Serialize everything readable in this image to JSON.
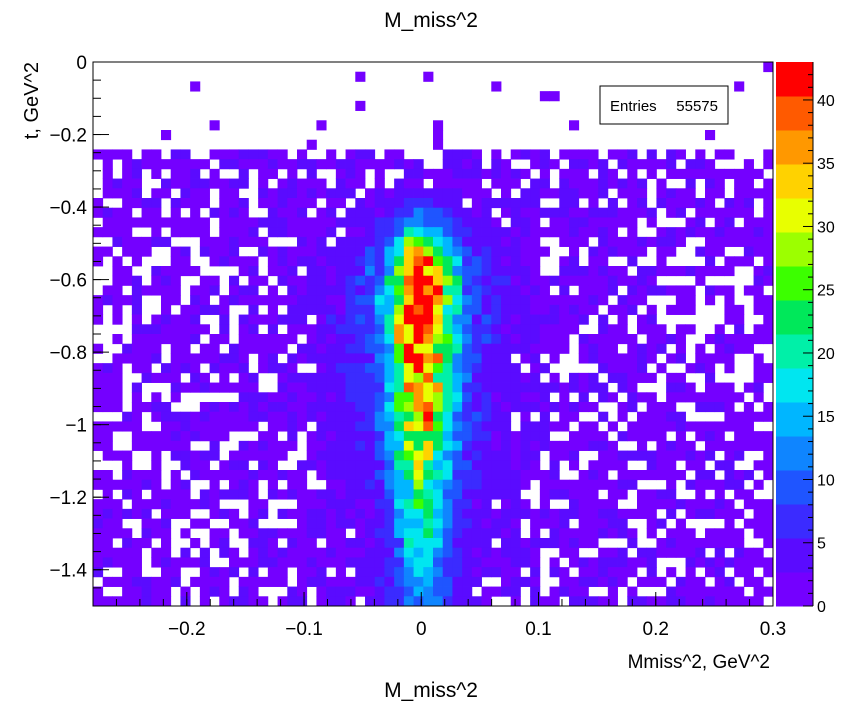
{
  "chart_data": {
    "type": "heatmap",
    "title": "M_miss^2",
    "footer_label": "M_miss^2",
    "xlabel": "Mmiss^2, GeV^2",
    "ylabel": "t, GeV^2",
    "xlim": [
      -0.28,
      0.3
    ],
    "ylim": [
      -1.5,
      0
    ],
    "x_ticks": [
      -0.2,
      -0.1,
      0,
      0.1,
      0.2,
      0.3
    ],
    "x_tick_labels": [
      "−0.2",
      "−0.1",
      "0",
      "0.1",
      "0.2",
      "0.3"
    ],
    "y_ticks": [
      0,
      -0.2,
      -0.4,
      -0.6,
      -0.8,
      -1,
      -1.2,
      -1.4
    ],
    "y_tick_labels": [
      "0",
      "−0.2",
      "−0.4",
      "−0.6",
      "−0.8",
      "−1",
      "−1.2",
      "−1.4"
    ],
    "bins_x": 70,
    "bins_y": 56,
    "z_range": [
      0,
      43
    ],
    "z_ticks": [
      0,
      5,
      10,
      15,
      20,
      25,
      30,
      35,
      40
    ],
    "z_tick_labels": [
      "0",
      "5",
      "10",
      "15",
      "20",
      "25",
      "30",
      "35",
      "40"
    ],
    "peak_x": 0.0,
    "peak_width_x": 0.018,
    "peak_y_max": -0.62,
    "grid": false,
    "colormap": [
      "#7400ff",
      "#5a0bff",
      "#3b2bff",
      "#1f55ff",
      "#0f85ff",
      "#00b6ff",
      "#00e6f0",
      "#00f0a8",
      "#00e85a",
      "#3cff00",
      "#9cff00",
      "#e8ff00",
      "#ffd200",
      "#ff9800",
      "#ff5a00",
      "#ff0000"
    ],
    "stats_box": {
      "label": "Entries",
      "value": "55575"
    }
  }
}
